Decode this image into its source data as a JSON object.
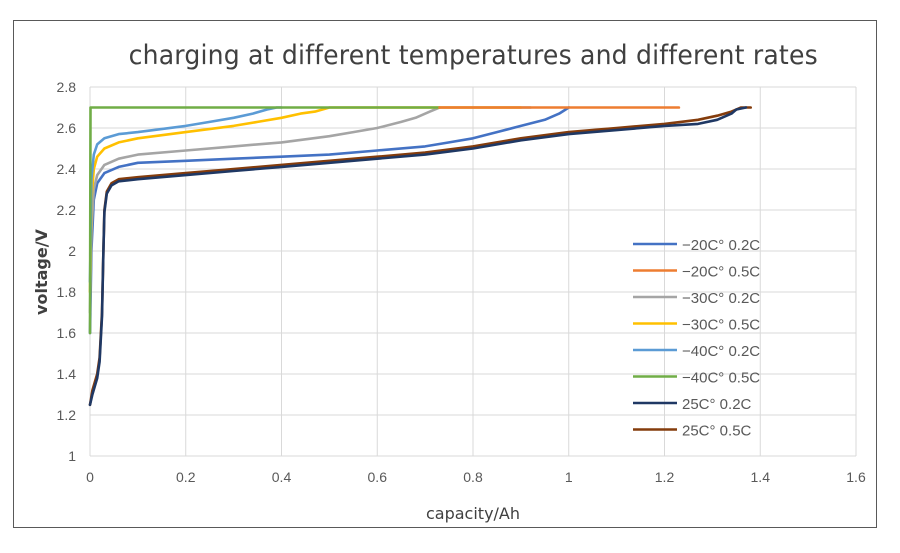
{
  "chart_data": {
    "type": "line",
    "title": "charging at different temperatures and different rates",
    "xlabel": "capacity/Ah",
    "ylabel": "voltage/V",
    "xlim": [
      0,
      1.6
    ],
    "ylim": [
      1,
      2.8
    ],
    "xticks": [
      0,
      0.2,
      0.4,
      0.6,
      0.8,
      1,
      1.2,
      1.4,
      1.6
    ],
    "xtick_labels": [
      "0",
      "0.2",
      "0.4",
      "0.6",
      "0.8",
      "1",
      "1.2",
      "1.4",
      "1.6"
    ],
    "yticks": [
      1,
      1.2,
      1.4,
      1.6,
      1.8,
      2,
      2.2,
      2.4,
      2.6,
      2.8
    ],
    "ytick_labels": [
      "1",
      "1.2",
      "1.4",
      "1.6",
      "1.8",
      "2",
      "2.2",
      "2.4",
      "2.6",
      "2.8"
    ],
    "grid": true,
    "legend_position": "right",
    "series": [
      {
        "name": "25C° 0.5C",
        "color": "#843c0c",
        "x": [
          0,
          0.005,
          0.015,
          0.02,
          0.025,
          0.028,
          0.03,
          0.035,
          0.045,
          0.06,
          0.1,
          0.2,
          0.3,
          0.4,
          0.5,
          0.6,
          0.7,
          0.8,
          0.9,
          1.0,
          1.1,
          1.2,
          1.27,
          1.31,
          1.34,
          1.36,
          1.38
        ],
        "y": [
          1.25,
          1.32,
          1.4,
          1.48,
          1.7,
          2.0,
          2.2,
          2.29,
          2.33,
          2.35,
          2.36,
          2.38,
          2.4,
          2.42,
          2.44,
          2.46,
          2.48,
          2.51,
          2.55,
          2.58,
          2.6,
          2.62,
          2.64,
          2.66,
          2.68,
          2.7,
          2.7
        ]
      },
      {
        "name": "25C° 0.2C",
        "color": "#1f3864",
        "x": [
          0,
          0.005,
          0.015,
          0.02,
          0.025,
          0.028,
          0.03,
          0.035,
          0.045,
          0.06,
          0.1,
          0.2,
          0.3,
          0.4,
          0.5,
          0.6,
          0.7,
          0.8,
          0.9,
          1.0,
          1.1,
          1.2,
          1.27,
          1.31,
          1.34,
          1.35,
          1.37
        ],
        "y": [
          1.25,
          1.3,
          1.38,
          1.46,
          1.68,
          2.0,
          2.19,
          2.28,
          2.32,
          2.34,
          2.35,
          2.37,
          2.39,
          2.41,
          2.43,
          2.45,
          2.47,
          2.5,
          2.54,
          2.57,
          2.59,
          2.61,
          2.62,
          2.64,
          2.67,
          2.69,
          2.7
        ]
      },
      {
        "name": "−20C° 0.2C",
        "color": "#4472c4",
        "x": [
          0,
          0.003,
          0.008,
          0.015,
          0.03,
          0.06,
          0.1,
          0.2,
          0.3,
          0.4,
          0.5,
          0.6,
          0.7,
          0.75,
          0.8,
          0.85,
          0.9,
          0.95,
          0.98,
          1.0
        ],
        "y": [
          1.6,
          2.0,
          2.25,
          2.33,
          2.38,
          2.41,
          2.43,
          2.44,
          2.45,
          2.46,
          2.47,
          2.49,
          2.51,
          2.53,
          2.55,
          2.58,
          2.61,
          2.64,
          2.67,
          2.7
        ]
      },
      {
        "name": "−30C° 0.2C",
        "color": "#a5a5a5",
        "x": [
          0,
          0.003,
          0.008,
          0.015,
          0.03,
          0.06,
          0.1,
          0.2,
          0.3,
          0.4,
          0.5,
          0.55,
          0.6,
          0.65,
          0.68,
          0.71,
          0.73,
          0.92
        ],
        "y": [
          1.7,
          2.1,
          2.3,
          2.37,
          2.42,
          2.45,
          2.47,
          2.49,
          2.51,
          2.53,
          2.56,
          2.58,
          2.6,
          2.63,
          2.65,
          2.68,
          2.7,
          2.7
        ]
      },
      {
        "name": "−30C° 0.5C",
        "color": "#ffc000",
        "x": [
          0,
          0.003,
          0.008,
          0.015,
          0.03,
          0.06,
          0.1,
          0.2,
          0.3,
          0.35,
          0.4,
          0.44,
          0.47,
          0.5,
          0.9
        ],
        "y": [
          1.8,
          2.25,
          2.4,
          2.46,
          2.5,
          2.53,
          2.55,
          2.58,
          2.61,
          2.63,
          2.65,
          2.67,
          2.68,
          2.7,
          2.7
        ]
      },
      {
        "name": "−40C° 0.2C",
        "color": "#5b9bd5",
        "x": [
          0,
          0.003,
          0.008,
          0.015,
          0.03,
          0.06,
          0.1,
          0.2,
          0.25,
          0.3,
          0.34,
          0.37,
          0.39,
          0.4
        ],
        "y": [
          1.85,
          2.35,
          2.47,
          2.52,
          2.55,
          2.57,
          2.58,
          2.61,
          2.63,
          2.65,
          2.67,
          2.69,
          2.7,
          2.7
        ]
      },
      {
        "name": "−40C° 0.5C",
        "color": "#70ad47",
        "x": [
          0,
          0.001,
          0.005,
          0.73
        ],
        "y": [
          1.6,
          2.7,
          2.7,
          2.7
        ]
      },
      {
        "name": "−20C° 0.5C",
        "color": "#ed7d31",
        "x": [
          0.73,
          1.23
        ],
        "y": [
          2.7,
          2.7
        ]
      }
    ],
    "legend_order": [
      "−20C° 0.2C",
      "−20C° 0.5C",
      "−30C° 0.2C",
      "−30C° 0.5C",
      "−40C° 0.2C",
      "−40C° 0.5C",
      "25C° 0.2C",
      "25C° 0.5C"
    ]
  }
}
